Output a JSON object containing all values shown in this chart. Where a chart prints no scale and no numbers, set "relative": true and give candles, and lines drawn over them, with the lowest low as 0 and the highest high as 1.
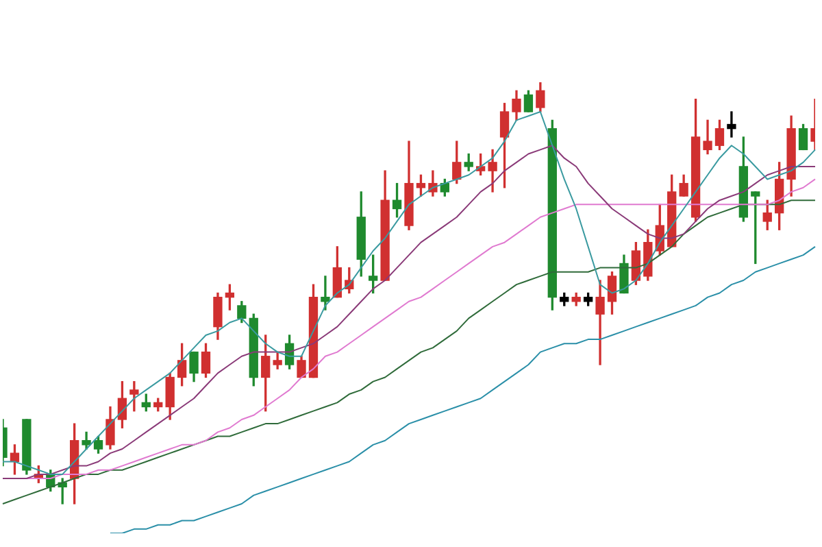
{
  "chart_data": {
    "type": "candlestick",
    "relative": true,
    "legend": false,
    "categories": [
      null,
      null,
      null,
      null,
      null,
      null,
      null,
      null,
      null,
      null,
      null,
      null,
      null,
      null,
      null,
      null,
      null,
      null,
      null,
      null,
      null,
      null,
      null,
      null,
      null,
      null,
      null,
      null,
      null,
      null,
      null,
      null,
      null,
      null,
      null,
      null,
      null,
      null,
      null,
      null,
      null,
      null,
      null,
      null,
      null,
      null,
      null,
      null,
      null,
      null,
      null,
      null,
      null,
      null,
      null,
      null,
      null,
      null,
      null,
      null,
      null,
      null,
      null,
      null,
      null,
      null,
      null,
      null,
      null
    ],
    "ohlc": [
      [
        0.18,
        0.2,
        0.09,
        0.11
      ],
      [
        0.1,
        0.14,
        0.07,
        0.12
      ],
      [
        0.2,
        0.2,
        0.07,
        0.08
      ],
      [
        0.06,
        0.09,
        0.05,
        0.07
      ],
      [
        0.07,
        0.08,
        0.03,
        0.04
      ],
      [
        0.05,
        0.06,
        0.0,
        0.04
      ],
      [
        0.06,
        0.19,
        0,
        0.15
      ],
      [
        0.15,
        0.17,
        0.13,
        0.14
      ],
      [
        0.15,
        0.16,
        0.12,
        0.13
      ],
      [
        0.14,
        0.23,
        0.13,
        0.2
      ],
      [
        0.2,
        0.29,
        0.18,
        0.25
      ],
      [
        0.26,
        0.29,
        0.22,
        0.27
      ],
      [
        0.24,
        0.26,
        0.22,
        0.23
      ],
      [
        0.23,
        0.25,
        0.22,
        0.24
      ],
      [
        0.23,
        0.31,
        0.2,
        0.3
      ],
      [
        0.3,
        0.38,
        0.28,
        0.34
      ],
      [
        0.36,
        0.36,
        0.29,
        0.31
      ],
      [
        0.31,
        0.38,
        0.3,
        0.36
      ],
      [
        0.42,
        0.5,
        0.39,
        0.49
      ],
      [
        0.49,
        0.52,
        0.46,
        0.5
      ],
      [
        0.47,
        0.48,
        0.43,
        0.44
      ],
      [
        0.44,
        0.45,
        0.28,
        0.3
      ],
      [
        0.3,
        0.4,
        0.22,
        0.35
      ],
      [
        0.33,
        0.36,
        0.32,
        0.34
      ],
      [
        0.38,
        0.4,
        0.32,
        0.33
      ],
      [
        0.3,
        0.35,
        0.3,
        0.34
      ],
      [
        0.3,
        0.52,
        0.3,
        0.49
      ],
      [
        0.49,
        0.54,
        0.46,
        0.48
      ],
      [
        0.49,
        0.61,
        0.49,
        0.56
      ],
      [
        0.51,
        0.56,
        0.5,
        0.53
      ],
      [
        0.68,
        0.74,
        0.54,
        0.58
      ],
      [
        0.54,
        0.59,
        0.5,
        0.53
      ],
      [
        0.53,
        0.79,
        0.53,
        0.72
      ],
      [
        0.72,
        0.76,
        0.68,
        0.7
      ],
      [
        0.66,
        0.86,
        0.65,
        0.76
      ],
      [
        0.75,
        0.78,
        0.73,
        0.76
      ],
      [
        0.74,
        0.79,
        0.73,
        0.76
      ],
      [
        0.76,
        0.77,
        0.73,
        0.74
      ],
      [
        0.77,
        0.86,
        0.76,
        0.81
      ],
      [
        0.81,
        0.83,
        0.79,
        0.8
      ],
      [
        0.79,
        0.83,
        0.78,
        0.8
      ],
      [
        0.79,
        0.84,
        0.74,
        0.81
      ],
      [
        0.87,
        0.95,
        0.75,
        0.93
      ],
      [
        0.93,
        0.98,
        0.91,
        0.96
      ],
      [
        0.97,
        0.98,
        0.93,
        0.93
      ],
      [
        0.94,
        1,
        0.93,
        0.98
      ],
      [
        0.89,
        0.91,
        0.46,
        0.49
      ],
      [
        0.48,
        0.5,
        0.47,
        0.49
      ],
      [
        0.48,
        0.5,
        0.47,
        0.49
      ],
      [
        0.48,
        0.5,
        0.47,
        0.49
      ],
      [
        0.45,
        0.53,
        0.33,
        0.49
      ],
      [
        0.48,
        0.55,
        0.45,
        0.54
      ],
      [
        0.57,
        0.59,
        0.5,
        0.5
      ],
      [
        0.53,
        0.62,
        0.52,
        0.6
      ],
      [
        0.54,
        0.65,
        0.53,
        0.62
      ],
      [
        0.6,
        0.71,
        0.59,
        0.66
      ],
      [
        0.61,
        0.78,
        0.61,
        0.74
      ],
      [
        0.73,
        0.78,
        0.73,
        0.76
      ],
      [
        0.68,
        0.96,
        0.67,
        0.87
      ],
      [
        0.84,
        0.91,
        0.83,
        0.86
      ],
      [
        0.85,
        0.91,
        0.84,
        0.89
      ],
      [
        0.89,
        0.93,
        0.87,
        0.9
      ],
      [
        0.8,
        0.87,
        0.67,
        0.68
      ],
      [
        0.74,
        0.74,
        0.57,
        0.73
      ],
      [
        0.67,
        0.72,
        0.65,
        0.69
      ],
      [
        0.69,
        0.81,
        0.65,
        0.77
      ],
      [
        0.77,
        0.92,
        0.73,
        0.89
      ],
      [
        0.89,
        0.9,
        0.84,
        0.84
      ],
      [
        0.86,
        0.96,
        0.84,
        0.89
      ]
    ],
    "colors": [
      "#1f8a2e",
      "#d03030",
      "#1f8a2e",
      "#d03030",
      "#1f8a2e",
      "#1f8a2e",
      "#d03030",
      "#1f8a2e",
      "#1f8a2e",
      "#d03030",
      "#d03030",
      "#d03030",
      "#1f8a2e",
      "#d03030",
      "#d03030",
      "#d03030",
      "#1f8a2e",
      "#d03030",
      "#d03030",
      "#d03030",
      "#1f8a2e",
      "#1f8a2e",
      "#d03030",
      "#d03030",
      "#1f8a2e",
      "#d03030",
      "#d03030",
      "#1f8a2e",
      "#d03030",
      "#d03030",
      "#1f8a2e",
      "#1f8a2e",
      "#d03030",
      "#1f8a2e",
      "#d03030",
      "#d03030",
      "#d03030",
      "#1f8a2e",
      "#d03030",
      "#1f8a2e",
      "#d03030",
      "#d03030",
      "#d03030",
      "#d03030",
      "#1f8a2e",
      "#d03030",
      "#1f8a2e",
      "#000000",
      "#d03030",
      "#000000",
      "#d03030",
      "#d03030",
      "#1f8a2e",
      "#d03030",
      "#d03030",
      "#d03030",
      "#d03030",
      "#d03030",
      "#d03030",
      "#d03030",
      "#d03030",
      "#000000",
      "#1f8a2e",
      "#1f8a2e",
      "#d03030",
      "#d03030",
      "#d03030",
      "#1f8a2e",
      "#d03030"
    ],
    "series": [
      {
        "type": "line",
        "color": "#3a9aa0",
        "values": [
          0.1,
          0.1,
          0.09,
          0.08,
          0.07,
          0.07,
          0.1,
          0.13,
          0.16,
          0.19,
          0.22,
          0.25,
          0.27,
          0.29,
          0.31,
          0.34,
          0.37,
          0.4,
          0.41,
          0.43,
          0.44,
          0.41,
          0.38,
          0.36,
          0.35,
          0.35,
          0.41,
          0.47,
          0.5,
          0.52,
          0.56,
          0.6,
          0.63,
          0.67,
          0.71,
          0.73,
          0.75,
          0.76,
          0.77,
          0.78,
          0.8,
          0.82,
          0.86,
          0.91,
          0.92,
          0.93,
          0.85,
          0.77,
          0.7,
          0.61,
          0.52,
          0.5,
          0.51,
          0.53,
          0.57,
          0.62,
          0.66,
          0.7,
          0.74,
          0.78,
          0.82,
          0.85,
          0.83,
          0.8,
          0.77,
          0.78,
          0.79,
          0.81,
          0.84
        ]
      },
      {
        "type": "line",
        "color": "#8a3a78",
        "values": [
          0.06,
          0.06,
          0.06,
          0.07,
          0.07,
          0.08,
          0.09,
          0.09,
          0.1,
          0.12,
          0.13,
          0.15,
          0.17,
          0.19,
          0.21,
          0.23,
          0.25,
          0.28,
          0.31,
          0.33,
          0.35,
          0.36,
          0.36,
          0.36,
          0.36,
          0.37,
          0.38,
          0.4,
          0.42,
          0.45,
          0.48,
          0.51,
          0.53,
          0.56,
          0.59,
          0.62,
          0.64,
          0.66,
          0.68,
          0.71,
          0.74,
          0.76,
          0.79,
          0.81,
          0.83,
          0.84,
          0.85,
          0.82,
          0.8,
          0.76,
          0.73,
          0.7,
          0.68,
          0.66,
          0.64,
          0.63,
          0.63,
          0.64,
          0.67,
          0.7,
          0.72,
          0.73,
          0.74,
          0.76,
          0.78,
          0.79,
          0.8,
          0.8,
          0.8
        ]
      },
      {
        "type": "line",
        "color": "#e07ad0",
        "values": [
          0.06,
          0.06,
          0.06,
          0.06,
          0.06,
          0.07,
          0.07,
          0.07,
          0.08,
          0.08,
          0.09,
          0.1,
          0.11,
          0.12,
          0.13,
          0.14,
          0.14,
          0.15,
          0.17,
          0.18,
          0.2,
          0.21,
          0.23,
          0.25,
          0.27,
          0.3,
          0.32,
          0.35,
          0.36,
          0.38,
          0.4,
          0.42,
          0.44,
          0.46,
          0.48,
          0.49,
          0.51,
          0.53,
          0.55,
          0.57,
          0.59,
          0.61,
          0.62,
          0.64,
          0.66,
          0.68,
          0.69,
          0.7,
          0.71,
          0.71,
          0.71,
          0.71,
          0.71,
          0.71,
          0.71,
          0.71,
          0.71,
          0.71,
          0.71,
          0.71,
          0.71,
          0.71,
          0.71,
          0.71,
          0.71,
          0.72,
          0.74,
          0.75,
          0.77
        ]
      },
      {
        "type": "line",
        "color": "#2f6b3a",
        "values": [
          0.0,
          0.01,
          0.02,
          0.03,
          0.04,
          0.05,
          0.06,
          0.07,
          0.07,
          0.08,
          0.08,
          0.09,
          0.1,
          0.11,
          0.12,
          0.13,
          0.14,
          0.15,
          0.16,
          0.16,
          0.17,
          0.18,
          0.19,
          0.19,
          0.2,
          0.21,
          0.22,
          0.23,
          0.24,
          0.26,
          0.27,
          0.29,
          0.3,
          0.32,
          0.34,
          0.36,
          0.37,
          0.39,
          0.41,
          0.44,
          0.46,
          0.48,
          0.5,
          0.52,
          0.53,
          0.54,
          0.55,
          0.55,
          0.55,
          0.55,
          0.56,
          0.56,
          0.56,
          0.56,
          0.57,
          0.59,
          0.61,
          0.64,
          0.66,
          0.68,
          0.69,
          0.7,
          0.71,
          0.71,
          0.71,
          0.71,
          0.72,
          0.72,
          0.72
        ]
      },
      {
        "type": "line",
        "color": "#2a8fa8",
        "values": [
          null,
          null,
          null,
          null,
          null,
          null,
          null,
          null,
          null,
          -0.07,
          -0.07,
          -0.06,
          -0.06,
          -0.05,
          -0.05,
          -0.04,
          -0.04,
          -0.03,
          -0.02,
          -0.01,
          0.0,
          0.02,
          0.03,
          0.04,
          0.05,
          0.06,
          0.07,
          0.08,
          0.09,
          0.1,
          0.12,
          0.14,
          0.15,
          0.17,
          0.19,
          0.2,
          0.21,
          0.22,
          0.23,
          0.24,
          0.25,
          0.27,
          0.29,
          0.31,
          0.33,
          0.36,
          0.37,
          0.38,
          0.38,
          0.39,
          0.39,
          0.4,
          0.41,
          0.42,
          0.43,
          0.44,
          0.45,
          0.46,
          0.47,
          0.49,
          0.5,
          0.52,
          0.53,
          0.55,
          0.56,
          0.57,
          0.58,
          0.59,
          0.61
        ]
      }
    ]
  }
}
